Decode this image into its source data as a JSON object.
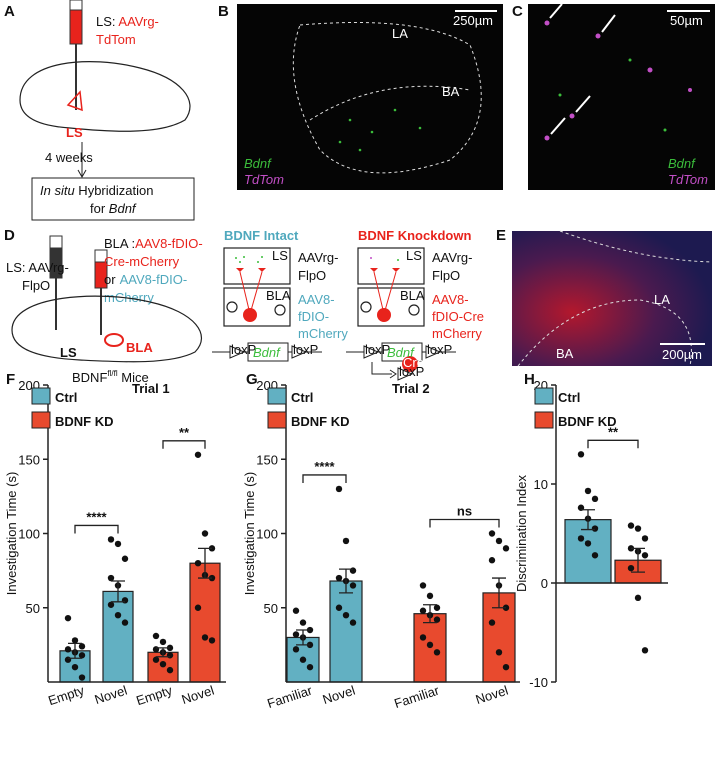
{
  "panels": {
    "a": {
      "label": "A",
      "virus_prefix": "LS: ",
      "virus": [
        "AAVrg-",
        "TdTom"
      ],
      "region": "LS",
      "delay": "4 weeks",
      "procedure": [
        "In situ",
        " Hybridization",
        "for ",
        "Bdnf"
      ]
    },
    "b": {
      "label": "B",
      "scale": "250µm",
      "regions": [
        "LA",
        "BA"
      ],
      "channels": [
        "Bdnf",
        "TdTom"
      ]
    },
    "c": {
      "label": "C",
      "scale": "50µm",
      "channels": [
        "Bdnf",
        "TdTom"
      ]
    },
    "d": {
      "label": "D",
      "ls_virus": [
        "LS: AAVrg-",
        "FlpO"
      ],
      "bla_prefix": "BLA :",
      "cre_virus": [
        "AAV8-fDIO-",
        "Cre-mCherry"
      ],
      "or": "or",
      "control_virus": [
        "AAV8-fDIO-",
        "mCherry"
      ],
      "regions": [
        "LS",
        "BLA"
      ],
      "mouse": [
        "BDNF",
        "fl/fl",
        " Mice"
      ],
      "intact": {
        "title": "BDNF Intact",
        "regions": [
          "LS",
          "BLA"
        ],
        "retro": [
          "AAVrg-",
          "FlpO"
        ],
        "local": [
          "AAV8-",
          "fDIO-",
          "mCherry"
        ],
        "gene": "Bdnf",
        "site": "loxP"
      },
      "knockdown": {
        "title": "BDNF Knockdown",
        "regions": [
          "LS",
          "BLA"
        ],
        "retro": [
          "AAVrg-",
          "FlpO"
        ],
        "local": [
          "AAV8-",
          "fDIO-Cre",
          "mCherry"
        ],
        "gene": "Bdnf",
        "site": "loxP",
        "enzyme": "Cre"
      }
    },
    "e": {
      "label": "E",
      "regions": [
        "LA",
        "BA"
      ],
      "scale": "200µm"
    }
  },
  "chart_data": [
    {
      "type": "bar",
      "label": "F",
      "title": "Trial 1",
      "y_label": "Investigation Time (s)",
      "categories": [
        "Empty",
        "Novel",
        "Empty",
        "Novel"
      ],
      "series": [
        {
          "name": "Ctrl",
          "color": "#62b0c2",
          "values": [
            21,
            61,
            null,
            null
          ],
          "errors": [
            5,
            7,
            null,
            null
          ],
          "points": [
            [
              43,
              28,
              24,
              22,
              20,
              18,
              15,
              10,
              3
            ],
            [
              96,
              93,
              83,
              70,
              65,
              55,
              52,
              45,
              40
            ],
            null,
            null
          ]
        },
        {
          "name": "BDNF KD",
          "color": "#e84a2e",
          "values": [
            null,
            null,
            20,
            80
          ],
          "errors": [
            null,
            null,
            3,
            10
          ],
          "points": [
            null,
            null,
            [
              31,
              27,
              23,
              22,
              20,
              18,
              15,
              12,
              8
            ],
            [
              153,
              100,
              90,
              80,
              72,
              70,
              50,
              30,
              28
            ]
          ]
        }
      ],
      "ylim": [
        0,
        200
      ],
      "yticks": [
        50,
        100,
        150,
        200
      ],
      "annotations": [
        "****",
        "**"
      ]
    },
    {
      "type": "bar",
      "label": "G",
      "title": "Trial 2",
      "y_label": "Investigation Time (s)",
      "categories": [
        "Familiar",
        "Novel",
        "Familiar",
        "Novel"
      ],
      "series": [
        {
          "name": "Ctrl",
          "color": "#62b0c2",
          "values": [
            30,
            68,
            null,
            null
          ],
          "errors": [
            5,
            8,
            null,
            null
          ],
          "points": [
            [
              48,
              40,
              35,
              32,
              30,
              25,
              22,
              15,
              10
            ],
            [
              130,
              95,
              75,
              70,
              68,
              65,
              50,
              45,
              40
            ],
            null,
            null
          ]
        },
        {
          "name": "BDNF KD",
          "color": "#e84a2e",
          "values": [
            null,
            null,
            46,
            60
          ],
          "errors": [
            null,
            null,
            6,
            10
          ],
          "points": [
            null,
            null,
            [
              65,
              58,
              50,
              48,
              45,
              42,
              30,
              25,
              20
            ],
            [
              100,
              95,
              90,
              82,
              65,
              50,
              40,
              20,
              10
            ]
          ]
        }
      ],
      "ylim": [
        0,
        200
      ],
      "yticks": [
        50,
        100,
        150,
        200
      ],
      "annotations": [
        "****",
        "ns"
      ]
    },
    {
      "type": "bar",
      "label": "H",
      "y_label": "Discrimination Index",
      "categories": [
        null,
        null
      ],
      "series": [
        {
          "name": "Ctrl",
          "color": "#62b0c2",
          "values": [
            6.4,
            null
          ],
          "errors": [
            1.0,
            null
          ],
          "points": [
            [
              13,
              9.3,
              8.5,
              7.6,
              6.5,
              5.5,
              4.5,
              4,
              2.8
            ],
            null
          ]
        },
        {
          "name": "BDNF KD",
          "color": "#e84a2e",
          "values": [
            null,
            2.3
          ],
          "errors": [
            null,
            1.2
          ],
          "points": [
            null,
            [
              5.8,
              5.5,
              4.5,
              3.5,
              3.2,
              2.8,
              1.5,
              -1.5,
              -6.8
            ]
          ]
        }
      ],
      "ylim": [
        -10,
        20
      ],
      "yticks": [
        -10,
        0,
        10,
        20
      ],
      "annotations": [
        "**"
      ]
    }
  ]
}
